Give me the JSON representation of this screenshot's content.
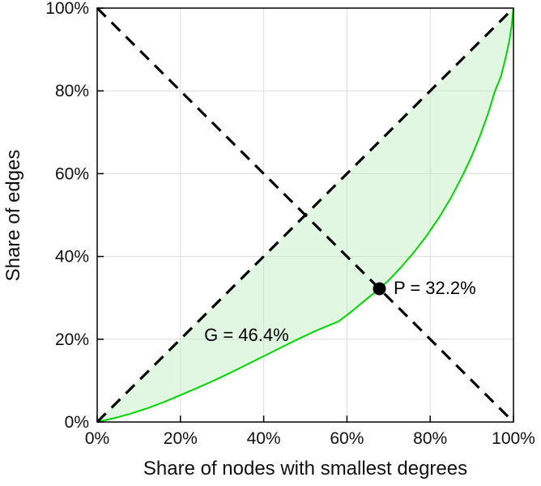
{
  "figure": {
    "background": "#ffffff"
  },
  "chart_data": {
    "type": "line",
    "title": "",
    "xlabel": "Share of nodes with smallest degrees",
    "ylabel": "Share of edges",
    "xlim": [
      0,
      100
    ],
    "ylim": [
      0,
      100
    ],
    "grid": true,
    "grid_color": "#dcdcdc",
    "axis_color": "#000000",
    "x_tick_values": [
      0,
      20,
      40,
      60,
      80,
      100
    ],
    "x_tick_labels": [
      "0%",
      "20%",
      "40%",
      "60%",
      "80%",
      "100%"
    ],
    "y_tick_values": [
      0,
      20,
      40,
      60,
      80,
      100
    ],
    "y_tick_labels": [
      "0%",
      "20%",
      "40%",
      "60%",
      "80%",
      "100%"
    ],
    "legend": "none",
    "series": [
      {
        "name": "lorenz-curve",
        "type": "line",
        "style": "solid",
        "color": "#00d500",
        "width": 2,
        "points": [
          [
            0,
            0
          ],
          [
            4,
            0.9
          ],
          [
            8,
            2.0
          ],
          [
            12,
            3.3
          ],
          [
            16,
            4.8
          ],
          [
            20,
            6.5
          ],
          [
            24,
            8.2
          ],
          [
            28,
            10.0
          ],
          [
            32,
            11.9
          ],
          [
            36,
            13.9
          ],
          [
            40,
            15.9
          ],
          [
            44,
            17.9
          ],
          [
            48,
            19.9
          ],
          [
            52,
            21.8
          ],
          [
            56,
            23.5
          ],
          [
            58,
            24.3
          ],
          [
            61,
            26.6
          ],
          [
            64,
            29.1
          ],
          [
            67.8,
            32.2
          ],
          [
            70,
            34.2
          ],
          [
            73,
            37.4
          ],
          [
            76,
            40.9
          ],
          [
            79,
            44.8
          ],
          [
            82,
            49.2
          ],
          [
            85,
            54.2
          ],
          [
            88,
            60.0
          ],
          [
            90,
            64.3
          ],
          [
            92,
            69.2
          ],
          [
            94,
            74.8
          ],
          [
            95.5,
            79.8
          ],
          [
            97,
            83.5
          ],
          [
            98,
            87.5
          ],
          [
            99,
            92.0
          ],
          [
            99.6,
            96.0
          ],
          [
            100,
            100
          ]
        ]
      },
      {
        "name": "equality-diagonal",
        "type": "line",
        "style": "dashed",
        "color": "#000000",
        "width": 3.2,
        "points": [
          [
            0,
            0
          ],
          [
            100,
            100
          ]
        ]
      },
      {
        "name": "anti-diagonal",
        "type": "line",
        "style": "dashed",
        "color": "#000000",
        "width": 3.2,
        "points": [
          [
            0,
            100
          ],
          [
            100,
            0
          ]
        ]
      }
    ],
    "shaded_region": {
      "between": [
        "equality-diagonal",
        "lorenz-curve"
      ],
      "color": "#bdeebd",
      "opacity": 0.45
    },
    "annotations": {
      "gini": {
        "text": "G = 46.4%",
        "x": 25.7,
        "y": 19.6
      },
      "pivot": {
        "text": "P = 32.2%",
        "x": 71.2,
        "y": 30.9
      },
      "pivot_point": {
        "x": 67.8,
        "y": 32.2,
        "marker": "filled-circle",
        "radius": 8,
        "color": "#000000"
      }
    }
  }
}
